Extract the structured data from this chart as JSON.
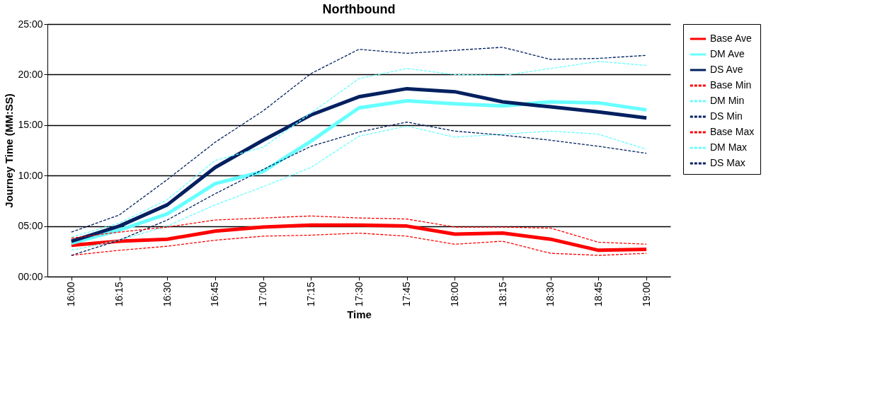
{
  "chart_data": {
    "type": "line",
    "title": "Northbound",
    "xlabel": "Time",
    "ylabel": "Journey Time (MM:SS)",
    "categories": [
      "16:00",
      "16:15",
      "16:30",
      "16:45",
      "17:00",
      "17:15",
      "17:30",
      "17:45",
      "18:00",
      "18:15",
      "18:30",
      "18:45",
      "19:00"
    ],
    "series": [
      {
        "name": "Base Ave",
        "color": "#ff0000",
        "line_style": "solid",
        "values": [
          3.1,
          3.5,
          3.7,
          4.5,
          4.9,
          5.1,
          5.1,
          5.0,
          4.2,
          4.3,
          3.7,
          2.6,
          2.7
        ]
      },
      {
        "name": "DM Ave",
        "color": "#66ffff",
        "line_style": "solid",
        "values": [
          3.3,
          4.6,
          6.2,
          9.2,
          10.4,
          13.4,
          16.7,
          17.4,
          17.1,
          16.9,
          17.3,
          17.2,
          16.5
        ]
      },
      {
        "name": "DS Ave",
        "color": "#002060",
        "line_style": "solid",
        "values": [
          3.5,
          5.0,
          7.1,
          10.8,
          13.5,
          16.0,
          17.8,
          18.6,
          18.3,
          17.3,
          16.8,
          16.3,
          15.7
        ]
      },
      {
        "name": "Base Min",
        "color": "#ff0000",
        "line_style": "dashed",
        "values": [
          2.1,
          2.6,
          3.0,
          3.6,
          4.0,
          4.1,
          4.3,
          4.0,
          3.2,
          3.5,
          2.3,
          2.1,
          2.3
        ]
      },
      {
        "name": "DM Min",
        "color": "#66ffff",
        "line_style": "dashed",
        "values": [
          2.6,
          3.6,
          5.0,
          7.1,
          8.9,
          10.8,
          13.9,
          14.9,
          13.8,
          14.1,
          14.4,
          14.1,
          12.6
        ]
      },
      {
        "name": "DS Min",
        "color": "#002060",
        "line_style": "dashed",
        "values": [
          2.1,
          3.6,
          5.6,
          8.2,
          10.6,
          12.9,
          14.3,
          15.3,
          14.4,
          14.0,
          13.5,
          12.9,
          12.2
        ]
      },
      {
        "name": "Base Max",
        "color": "#ff0000",
        "line_style": "dashed",
        "values": [
          3.8,
          4.4,
          4.9,
          5.6,
          5.8,
          6.0,
          5.8,
          5.7,
          4.9,
          4.9,
          4.8,
          3.4,
          3.2
        ]
      },
      {
        "name": "DM Max",
        "color": "#66ffff",
        "line_style": "dashed",
        "values": [
          3.9,
          5.3,
          7.6,
          11.5,
          12.8,
          16.2,
          19.6,
          20.6,
          20.0,
          19.9,
          20.6,
          21.3,
          20.9
        ]
      },
      {
        "name": "DS Max",
        "color": "#002060",
        "line_style": "dashed",
        "values": [
          4.4,
          6.1,
          9.6,
          13.3,
          16.4,
          20.1,
          22.5,
          22.1,
          22.4,
          22.7,
          21.5,
          21.6,
          21.9
        ]
      }
    ],
    "ylim": [
      0,
      25
    ],
    "yticks": [
      {
        "value": 0,
        "label": "00:00"
      },
      {
        "value": 5,
        "label": "05:00"
      },
      {
        "value": 10,
        "label": "10:00"
      },
      {
        "value": 15,
        "label": "15:00"
      },
      {
        "value": 20,
        "label": "20:00"
      },
      {
        "value": 25,
        "label": "25:00"
      }
    ],
    "grid": "y",
    "legend": "right",
    "marker": "none"
  }
}
